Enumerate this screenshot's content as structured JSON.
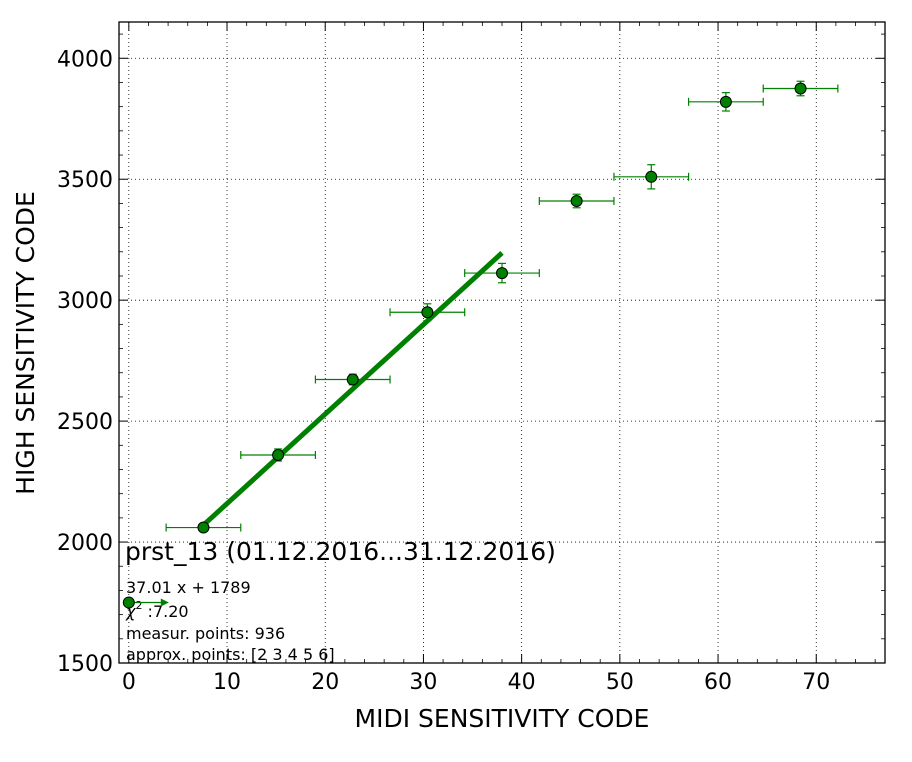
{
  "chart_data": {
    "type": "scatter",
    "xlabel": "MIDI SENSITIVITY CODE",
    "ylabel": "HIGH SENSITIVITY CODE",
    "xlim": [
      -1,
      77
    ],
    "ylim": [
      1500,
      4150
    ],
    "x_ticks": [
      0,
      10,
      20,
      30,
      40,
      50,
      60,
      70
    ],
    "y_ticks": [
      1500,
      2000,
      2500,
      3000,
      3500,
      4000
    ],
    "grid": true,
    "grid_style": "dotted",
    "color": "#008000",
    "points": [
      {
        "x": 7.6,
        "y": 2060,
        "xerr": 3.8,
        "yerr": 8
      },
      {
        "x": 15.2,
        "y": 2360,
        "xerr": 3.8,
        "yerr": 25
      },
      {
        "x": 22.8,
        "y": 2672,
        "xerr": 3.8,
        "yerr": 22
      },
      {
        "x": 30.4,
        "y": 2950,
        "xerr": 3.8,
        "yerr": 35
      },
      {
        "x": 38.0,
        "y": 3112,
        "xerr": 3.8,
        "yerr": 40
      },
      {
        "x": 45.6,
        "y": 3410,
        "xerr": 3.8,
        "yerr": 28
      },
      {
        "x": 53.2,
        "y": 3510,
        "xerr": 3.8,
        "yerr": 50
      },
      {
        "x": 60.8,
        "y": 3820,
        "xerr": 3.8,
        "yerr": 38
      },
      {
        "x": 68.4,
        "y": 3875,
        "xerr": 3.8,
        "yerr": 30
      }
    ],
    "fit": {
      "slope": 37.01,
      "intercept": 1789,
      "x_range": [
        7.6,
        38.0
      ]
    },
    "legend_marker": {
      "x": 0,
      "y": 1750
    },
    "annotations": {
      "title": "prst_13 (01.12.2016...31.12.2016)",
      "equation": "37.01 x + 1789",
      "chi2_symbol": "χ",
      "chi2_superscript": "2",
      "chi2_value": " :7.20",
      "measur_points": "measur. points: 936",
      "approx_points": "approx. points: [2 3 4 5 6]"
    }
  }
}
